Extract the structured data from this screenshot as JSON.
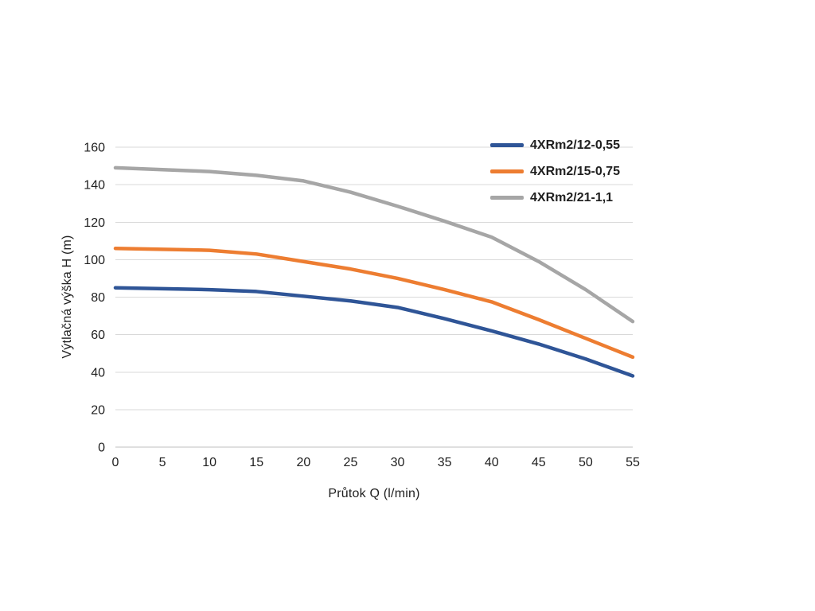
{
  "chart_data": {
    "type": "line",
    "title": "",
    "xlabel": "Průtok Q (l/min)",
    "ylabel": "Výtlačná výška H (m)",
    "x": [
      0,
      5,
      10,
      15,
      20,
      25,
      30,
      35,
      40,
      45,
      50,
      55
    ],
    "xlim": [
      0,
      55
    ],
    "ylim": [
      0,
      160
    ],
    "x_ticks": [
      0,
      5,
      10,
      15,
      20,
      25,
      30,
      35,
      40,
      45,
      50,
      55
    ],
    "y_ticks": [
      0,
      20,
      40,
      60,
      80,
      100,
      120,
      140,
      160
    ],
    "grid": "horizontal",
    "legend_position": "top-right",
    "colors": {
      "gridline": "#d9d9d9",
      "axis_line": "#bfbfbf",
      "tick_text": "#1f1f1f"
    },
    "series": [
      {
        "name": "4XRm2/12-0,55",
        "color": "#2F5597",
        "values": [
          85,
          84.5,
          84,
          83,
          80.5,
          78,
          74.5,
          68.5,
          62,
          55,
          47,
          38
        ]
      },
      {
        "name": "4XRm2/15-0,75",
        "color": "#ED7D31",
        "values": [
          106,
          105.5,
          105,
          103,
          99,
          95,
          90,
          84,
          77.5,
          68,
          58,
          48
        ]
      },
      {
        "name": "4XRm2/21-1,1",
        "color": "#A6A6A6",
        "values": [
          149,
          148,
          147,
          145,
          142,
          136,
          128.5,
          120.5,
          112,
          99,
          84,
          67
        ]
      }
    ]
  }
}
